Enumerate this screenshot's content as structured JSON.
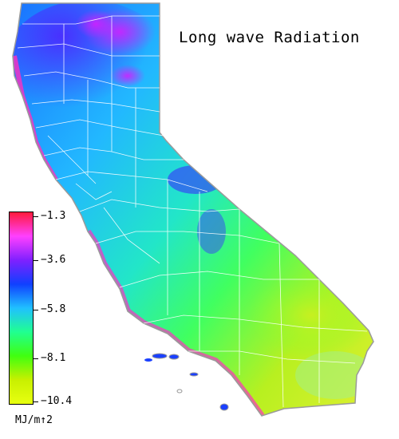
{
  "title": "Long wave Radiation",
  "legend": {
    "ticks": [
      "−1.3",
      "−3.6",
      "−5.8",
      "−8.1",
      "−10.4"
    ],
    "unit": "MJ/m↑2",
    "colors": [
      "#ff1a3c",
      "#ff40ff",
      "#7f20ff",
      "#1040ff",
      "#20c0ff",
      "#20ff90",
      "#40ff10",
      "#c8f000",
      "#e8ff10"
    ]
  },
  "map": {
    "region": "California",
    "boundaries": "county-lines",
    "color_scale_min": -10.4,
    "color_scale_max": -1.3
  }
}
